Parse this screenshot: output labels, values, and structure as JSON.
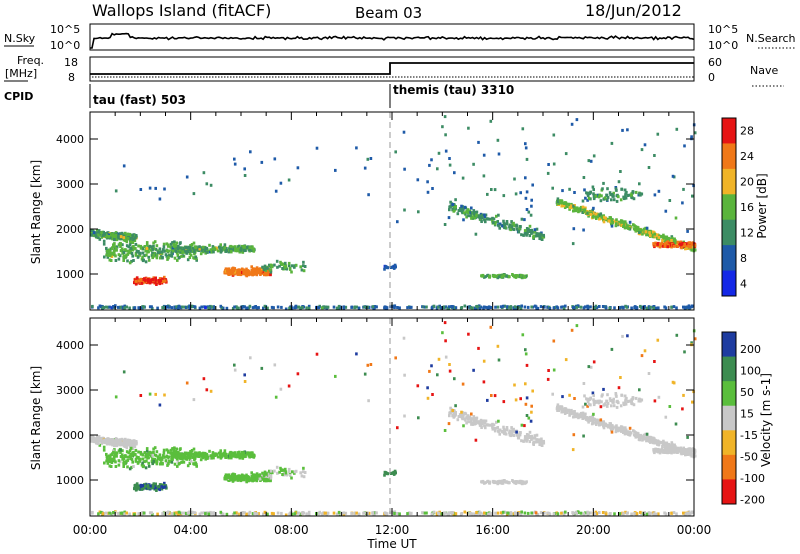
{
  "header": {
    "station": "Wallops Island (fitACF)",
    "beam": "Beam 03",
    "date": "18/Jun/2012"
  },
  "strips": {
    "nsky_label": "N.Sky",
    "nsky_ticks": [
      "10^5",
      "10^0"
    ],
    "nsearch_label": "N.Search",
    "nsearch_ticks": [
      "10^5",
      "10^0"
    ],
    "freq_label_1": "Freq.",
    "freq_label_2": "[MHz]",
    "freq_ticks": [
      "18",
      "8"
    ],
    "nave_label": "Nave",
    "nave_ticks": [
      "60",
      "0"
    ],
    "cpid_label": "CPID",
    "cpid_1": "tau (fast) 503",
    "cpid_2": "themis (tau) 3310"
  },
  "chart_data": [
    {
      "type": "heatmap",
      "quantity": "power",
      "ylabel": "Slant Range [km]",
      "xlabel": "",
      "yticks": [
        "1000",
        "2000",
        "3000",
        "4000"
      ],
      "ylim": [
        200,
        4600
      ],
      "colorbar": {
        "label": "Power [dB]",
        "ticks": [
          "4",
          "8",
          "12",
          "16",
          "20",
          "24",
          "28"
        ],
        "colors": [
          "#1428e6",
          "#1e5aa8",
          "#3c8c64",
          "#5ab43c",
          "#f0b428",
          "#f07818",
          "#e61414"
        ]
      }
    },
    {
      "type": "heatmap",
      "quantity": "velocity",
      "ylabel": "Slant Range [km]",
      "xlabel": "Time UT",
      "xticks": [
        "00:00",
        "04:00",
        "08:00",
        "12:00",
        "16:00",
        "20:00",
        "00:00"
      ],
      "yticks": [
        "1000",
        "2000",
        "3000",
        "4000"
      ],
      "ylim": [
        200,
        4600
      ],
      "colorbar": {
        "label": "Velocity [m s-1]",
        "ticks": [
          "200",
          "100",
          "50",
          "15",
          "-15",
          "-50",
          "-100",
          "-200"
        ],
        "colors": [
          "#1e3ca0",
          "#3c8c50",
          "#5abe3c",
          "#c8c8c8",
          "#f0b428",
          "#f07818",
          "#e61414"
        ]
      }
    }
  ]
}
